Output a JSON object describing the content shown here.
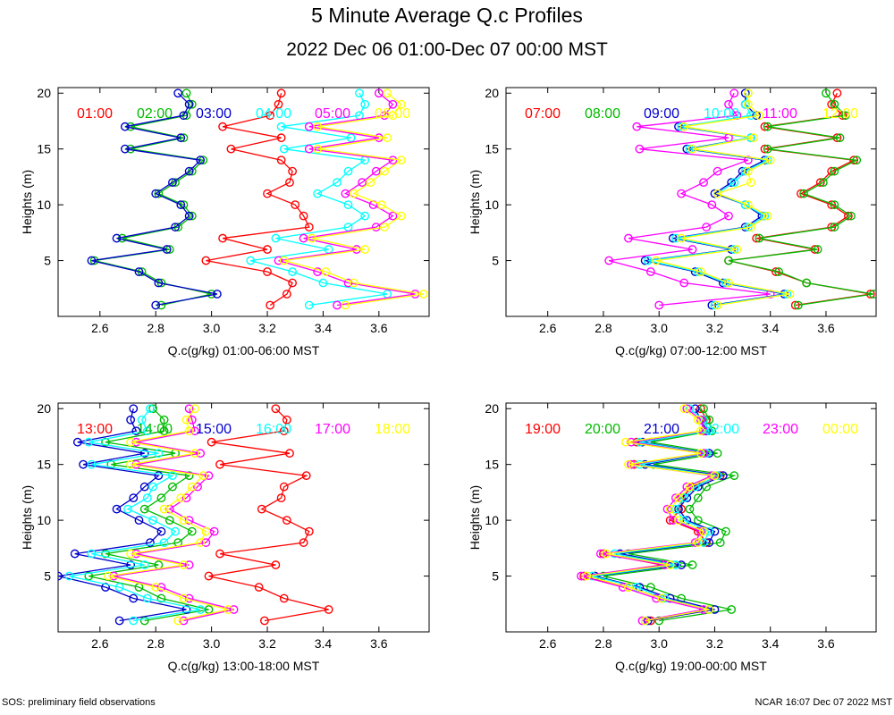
{
  "title": "5 Minute Average Q.c Profiles",
  "subtitle": "2022 Dec 06 01:00-Dec 07 00:00 MST",
  "footer_left": "SOS: preliminary field observations",
  "footer_right": "NCAR 16:07 Dec 07 2022 MST",
  "colors": [
    "#ff0000",
    "#00bb00",
    "#0000cc",
    "#00ffff",
    "#ff00ff",
    "#ffff00"
  ],
  "chart_data": [
    {
      "type": "scatter",
      "title": "",
      "xlabel": "Q.c(g/kg) 01:00-06:00 MST",
      "ylabel": "Heights (m)",
      "xlim": [
        2.45,
        3.78
      ],
      "ylim": [
        0,
        20.5
      ],
      "xticks": [
        "2.6",
        "2.8",
        "3.0",
        "3.2",
        "3.4",
        "3.6"
      ],
      "yticks": [
        "5",
        "10",
        "15",
        "20"
      ],
      "heights": [
        1,
        2,
        3,
        4,
        5,
        6,
        7,
        8,
        9,
        10,
        11,
        12,
        13,
        14,
        15,
        16,
        17,
        18,
        19,
        20
      ],
      "series": [
        {
          "name": "01:00",
          "values": [
            3.21,
            3.27,
            3.29,
            3.2,
            2.98,
            3.2,
            3.04,
            3.35,
            3.33,
            3.3,
            3.2,
            3.28,
            3.29,
            3.25,
            3.07,
            3.25,
            3.04,
            3.21,
            3.24,
            3.25
          ]
        },
        {
          "name": "02:00",
          "values": [
            2.82,
            3.0,
            2.82,
            2.75,
            2.58,
            2.85,
            2.68,
            2.88,
            2.93,
            2.9,
            2.81,
            2.87,
            2.93,
            2.97,
            2.71,
            2.9,
            2.71,
            2.91,
            2.93,
            2.91
          ]
        },
        {
          "name": "03:00",
          "values": [
            2.8,
            3.02,
            2.81,
            2.74,
            2.57,
            2.84,
            2.66,
            2.87,
            2.92,
            2.89,
            2.8,
            2.86,
            2.92,
            2.96,
            2.69,
            2.89,
            2.69,
            2.9,
            2.92,
            2.88
          ]
        },
        {
          "name": "04:00",
          "values": [
            3.35,
            3.63,
            3.4,
            3.29,
            3.14,
            3.42,
            3.23,
            3.49,
            3.55,
            3.49,
            3.38,
            3.45,
            3.49,
            3.55,
            3.26,
            3.5,
            3.25,
            3.53,
            3.55,
            3.53
          ]
        },
        {
          "name": "05:00",
          "values": [
            3.45,
            3.73,
            3.49,
            3.38,
            3.24,
            3.52,
            3.33,
            3.59,
            3.65,
            3.58,
            3.48,
            3.54,
            3.59,
            3.65,
            3.35,
            3.6,
            3.35,
            3.62,
            3.65,
            3.6
          ]
        },
        {
          "name": "06:00",
          "values": [
            3.48,
            3.76,
            3.51,
            3.41,
            3.26,
            3.55,
            3.36,
            3.62,
            3.68,
            3.61,
            3.51,
            3.57,
            3.62,
            3.68,
            3.38,
            3.63,
            3.38,
            3.65,
            3.68,
            3.63
          ]
        }
      ]
    },
    {
      "type": "scatter",
      "title": "",
      "xlabel": "Q.c(g/kg) 07:00-12:00 MST",
      "ylabel": "Heights (m)",
      "xlim": [
        2.45,
        3.78
      ],
      "ylim": [
        0,
        20.5
      ],
      "xticks": [
        "2.6",
        "2.8",
        "3.0",
        "3.2",
        "3.4",
        "3.6"
      ],
      "yticks": [
        "5",
        "10",
        "15",
        "20"
      ],
      "heights": [
        1,
        2,
        3,
        4,
        5,
        6,
        7,
        8,
        9,
        10,
        11,
        12,
        13,
        14,
        15,
        16,
        17,
        18,
        19,
        20
      ],
      "series": [
        {
          "name": "07:00",
          "values": [
            3.49,
            3.76,
            3.53,
            3.42,
            3.25,
            3.56,
            3.35,
            3.62,
            3.68,
            3.62,
            3.51,
            3.58,
            3.62,
            3.7,
            3.38,
            3.64,
            3.38,
            3.66,
            3.62,
            3.64
          ]
        },
        {
          "name": "08:00",
          "values": [
            3.5,
            3.77,
            3.53,
            3.43,
            3.25,
            3.57,
            3.36,
            3.63,
            3.69,
            3.63,
            3.52,
            3.59,
            3.63,
            3.71,
            3.39,
            3.65,
            3.39,
            3.67,
            3.63,
            3.6
          ]
        },
        {
          "name": "09:00",
          "values": [
            3.19,
            3.45,
            3.23,
            3.13,
            2.95,
            3.26,
            3.05,
            3.31,
            3.37,
            3.31,
            3.2,
            3.26,
            3.3,
            3.38,
            3.1,
            3.33,
            3.07,
            3.35,
            3.31,
            3.31
          ]
        },
        {
          "name": "10:00",
          "values": [
            3.2,
            3.46,
            3.24,
            3.14,
            2.96,
            3.27,
            3.06,
            3.32,
            3.38,
            3.31,
            3.21,
            3.27,
            3.31,
            3.39,
            3.11,
            3.33,
            3.08,
            3.33,
            3.31,
            3.32
          ]
        },
        {
          "name": "11:00",
          "values": [
            3.0,
            3.4,
            3.09,
            2.97,
            2.82,
            3.12,
            2.89,
            3.17,
            3.25,
            3.19,
            3.08,
            3.16,
            3.21,
            3.32,
            2.93,
            3.25,
            2.92,
            3.28,
            3.25,
            3.27
          ]
        },
        {
          "name": "12:00",
          "values": [
            3.21,
            3.47,
            3.25,
            3.15,
            2.99,
            3.28,
            3.08,
            3.33,
            3.39,
            3.32,
            3.21,
            3.33,
            3.32,
            3.4,
            3.12,
            3.34,
            3.09,
            3.36,
            3.32,
            3.32
          ]
        }
      ]
    },
    {
      "type": "scatter",
      "title": "",
      "xlabel": "Q.c(g/kg) 13:00-18:00 MST",
      "ylabel": "Heights (m)",
      "xlim": [
        2.45,
        3.78
      ],
      "ylim": [
        0,
        20.5
      ],
      "xticks": [
        "2.6",
        "2.8",
        "3.0",
        "3.2",
        "3.4",
        "3.6"
      ],
      "yticks": [
        "5",
        "10",
        "15",
        "20"
      ],
      "heights": [
        1,
        2,
        3,
        4,
        5,
        6,
        7,
        8,
        9,
        10,
        11,
        12,
        13,
        14,
        15,
        16,
        17,
        18,
        19,
        20
      ],
      "series": [
        {
          "name": "13:00",
          "values": [
            3.19,
            3.42,
            3.26,
            3.17,
            2.99,
            3.23,
            3.03,
            3.33,
            3.35,
            3.27,
            3.18,
            3.25,
            3.26,
            3.34,
            3.03,
            3.28,
            3.0,
            3.26,
            3.27,
            3.23
          ]
        },
        {
          "name": "14:00",
          "values": [
            2.76,
            2.99,
            2.82,
            2.74,
            2.56,
            2.81,
            2.62,
            2.88,
            2.93,
            2.85,
            2.76,
            2.82,
            2.86,
            2.92,
            2.64,
            2.87,
            2.62,
            2.83,
            2.83,
            2.79
          ]
        },
        {
          "name": "15:00",
          "values": [
            2.67,
            2.91,
            2.72,
            2.62,
            2.45,
            2.71,
            2.51,
            2.78,
            2.82,
            2.74,
            2.66,
            2.72,
            2.76,
            2.81,
            2.54,
            2.76,
            2.52,
            2.73,
            2.71,
            2.72
          ]
        },
        {
          "name": "16:00",
          "values": [
            2.72,
            2.96,
            2.77,
            2.67,
            2.49,
            2.76,
            2.57,
            2.83,
            2.87,
            2.79,
            2.7,
            2.77,
            2.79,
            2.86,
            2.57,
            2.81,
            2.56,
            2.77,
            2.75,
            2.78
          ]
        },
        {
          "name": "17:00",
          "values": [
            2.9,
            3.08,
            2.92,
            2.82,
            2.65,
            2.92,
            2.73,
            2.98,
            3.01,
            2.92,
            2.85,
            2.91,
            2.95,
            2.99,
            2.73,
            2.96,
            2.73,
            2.94,
            2.93,
            2.92
          ]
        },
        {
          "name": "18:00",
          "values": [
            2.88,
            3.06,
            2.9,
            2.8,
            2.63,
            2.9,
            2.71,
            2.96,
            2.98,
            2.9,
            2.83,
            2.89,
            2.93,
            2.97,
            2.71,
            2.94,
            2.71,
            2.92,
            2.91,
            2.94
          ]
        }
      ]
    },
    {
      "type": "scatter",
      "title": "",
      "xlabel": "Q.c(g/kg) 19:00-00:00 MST",
      "ylabel": "Heights (m)",
      "xlim": [
        2.45,
        3.78
      ],
      "ylim": [
        0,
        20.5
      ],
      "xticks": [
        "2.6",
        "2.8",
        "3.0",
        "3.2",
        "3.4",
        "3.6"
      ],
      "yticks": [
        "5",
        "10",
        "15",
        "20"
      ],
      "heights": [
        1,
        2,
        3,
        4,
        5,
        6,
        7,
        8,
        9,
        10,
        11,
        12,
        13,
        14,
        15,
        16,
        17,
        18,
        19,
        20
      ],
      "series": [
        {
          "name": "19:00",
          "values": [
            2.97,
            3.18,
            3.01,
            2.89,
            2.73,
            3.01,
            2.8,
            3.17,
            3.14,
            3.04,
            3.08,
            3.08,
            3.12,
            3.22,
            2.91,
            3.17,
            2.92,
            3.16,
            3.17,
            3.15
          ]
        },
        {
          "name": "20:00",
          "values": [
            3.0,
            3.26,
            3.08,
            2.97,
            2.8,
            3.12,
            2.89,
            3.22,
            3.24,
            3.14,
            3.11,
            3.14,
            3.17,
            3.27,
            2.98,
            3.21,
            2.97,
            3.19,
            3.18,
            3.16
          ]
        },
        {
          "name": "21:00",
          "values": [
            2.96,
            3.2,
            3.04,
            2.93,
            2.77,
            3.08,
            2.86,
            3.18,
            3.2,
            3.1,
            3.07,
            3.1,
            3.14,
            3.23,
            2.95,
            3.18,
            2.94,
            3.17,
            3.15,
            3.13
          ]
        },
        {
          "name": "22:00",
          "values": [
            2.95,
            3.18,
            3.02,
            2.92,
            2.76,
            3.06,
            2.84,
            3.16,
            3.18,
            3.09,
            3.06,
            3.09,
            3.13,
            3.21,
            2.93,
            3.17,
            2.93,
            3.18,
            3.16,
            3.11
          ]
        },
        {
          "name": "23:00",
          "values": [
            2.94,
            3.16,
            2.99,
            2.87,
            2.72,
            3.02,
            2.79,
            3.13,
            3.15,
            3.05,
            3.03,
            3.06,
            3.1,
            3.19,
            2.9,
            3.16,
            2.9,
            3.16,
            3.15,
            3.1
          ]
        },
        {
          "name": "00:00",
          "values": [
            2.95,
            3.18,
            3.01,
            2.89,
            2.74,
            3.04,
            2.81,
            3.14,
            3.16,
            3.07,
            3.04,
            3.07,
            3.11,
            3.2,
            2.89,
            3.15,
            2.88,
            3.15,
            3.14,
            3.09
          ]
        }
      ]
    }
  ]
}
